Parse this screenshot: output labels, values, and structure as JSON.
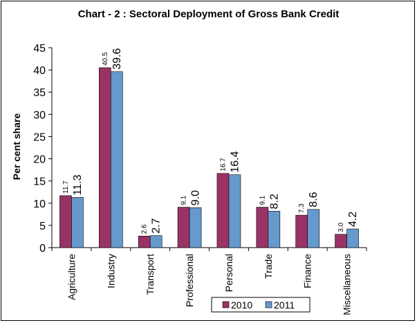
{
  "chart_data": {
    "type": "bar",
    "title": "Chart - 2 : Sectoral Deployment of Gross Bank Credit",
    "ylabel": "Per cent share",
    "xlabel": "",
    "ylim": [
      0,
      45
    ],
    "yticks": [
      0,
      5,
      10,
      15,
      20,
      25,
      30,
      35,
      40,
      45
    ],
    "categories": [
      "Agriculture",
      "Industry",
      "Transport",
      "Professional",
      "Personal",
      "Trade",
      "Finance",
      "Miscellaneous"
    ],
    "series": [
      {
        "name": "2010",
        "values": [
          11.7,
          40.5,
          2.6,
          9.1,
          16.7,
          9.1,
          7.3,
          3.0
        ],
        "labels": [
          "11.7",
          "40.5",
          "2.6",
          "9.1",
          "16.7",
          "9.1",
          "7.3",
          "3.0"
        ],
        "color": "#993366"
      },
      {
        "name": "2011",
        "values": [
          11.3,
          39.6,
          2.7,
          9.0,
          16.4,
          8.2,
          8.6,
          4.2
        ],
        "labels": [
          "11.3",
          "39.6",
          "2.7",
          "9.0",
          "16.4",
          "8.2",
          "8.6",
          "4.2"
        ],
        "color": "#6699CC"
      }
    ],
    "legend_position": "bottom-right",
    "grid": false
  }
}
